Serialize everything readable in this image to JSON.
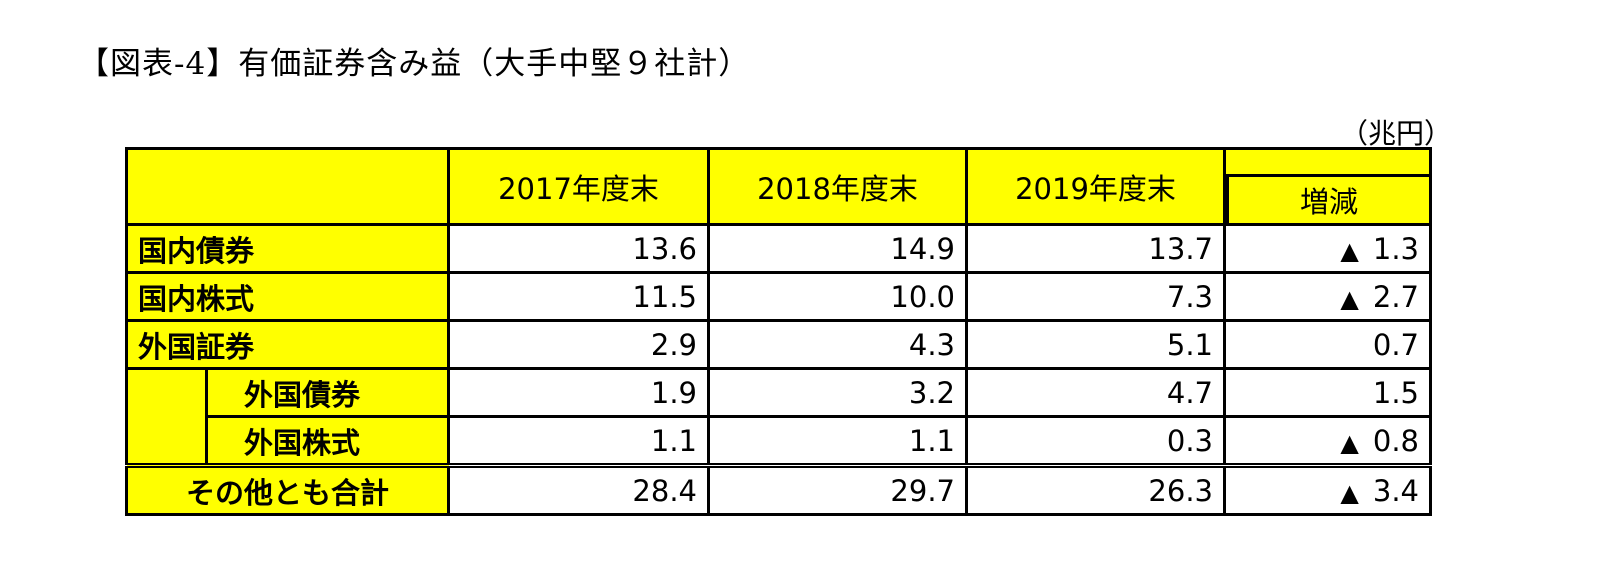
{
  "title": "【図表-4】有価証券含み益（大手中堅９社計）",
  "unit": "（兆円）",
  "columns": [
    "2017年度末",
    "2018年度末",
    "2019年度末",
    "増減"
  ],
  "rows": [
    {
      "label": "国内債券",
      "values": [
        "13.6",
        "14.9",
        "13.7"
      ],
      "diff": "1.3",
      "neg": true
    },
    {
      "label": "国内株式",
      "values": [
        "11.5",
        "10.0",
        "7.3"
      ],
      "diff": "2.7",
      "neg": true
    },
    {
      "label": "外国証券",
      "values": [
        "2.9",
        "4.3",
        "5.1"
      ],
      "diff": "0.7",
      "neg": false
    },
    {
      "label": "外国債券",
      "values": [
        "1.9",
        "3.2",
        "4.7"
      ],
      "diff": "1.5",
      "neg": false
    },
    {
      "label": "外国株式",
      "values": [
        "1.1",
        "1.1",
        "0.3"
      ],
      "diff": "0.8",
      "neg": true
    },
    {
      "label": "その他とも合計",
      "values": [
        "28.4",
        "29.7",
        "26.3"
      ],
      "diff": "3.4",
      "neg": true
    }
  ],
  "neg_marker": "▲"
}
